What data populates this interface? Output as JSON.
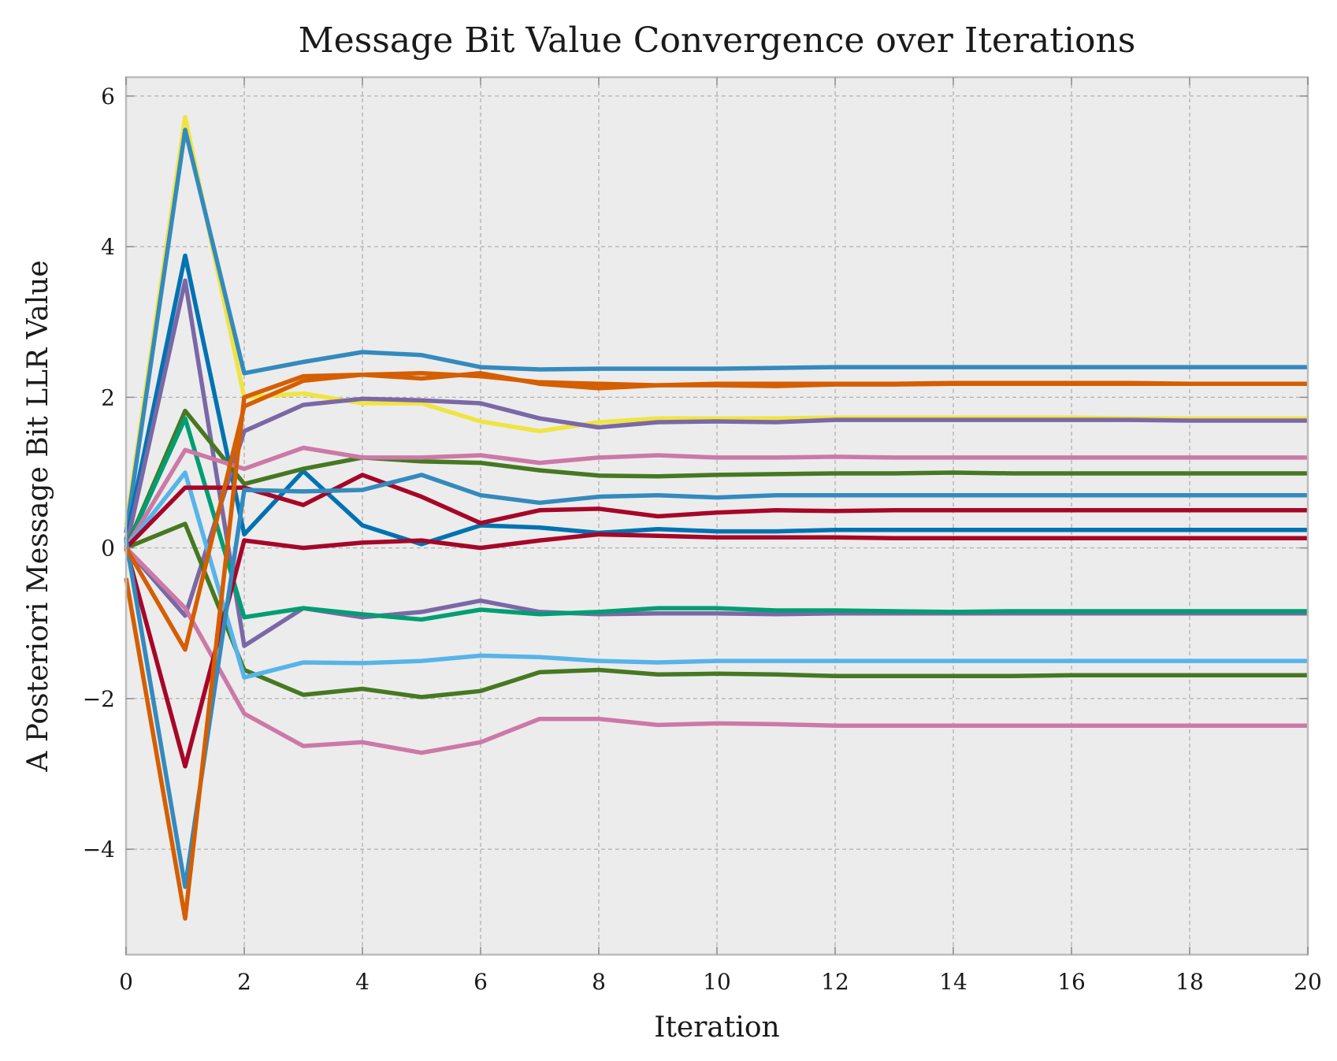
{
  "chart_data": {
    "type": "line",
    "title": "Message Bit Value Convergence over Iterations",
    "xlabel": "Iteration",
    "ylabel": "A Posteriori Message Bit LLR Value",
    "xlim": [
      0,
      20
    ],
    "ylim": [
      -5.4,
      6.25
    ],
    "xticks": [
      0,
      2,
      4,
      6,
      8,
      10,
      12,
      14,
      16,
      18,
      20
    ],
    "yticks": [
      -4,
      -2,
      0,
      2,
      4,
      6
    ],
    "ytick_labels": [
      "−4",
      "−2",
      "0",
      "2",
      "4",
      "6"
    ],
    "grid": true,
    "legend": "none",
    "background": "#ececec",
    "frame_color": "#bcbcbc",
    "x": [
      0,
      1,
      2,
      3,
      4,
      5,
      6,
      7,
      8,
      9,
      10,
      11,
      12,
      13,
      14,
      15,
      16,
      17,
      18,
      19,
      20
    ],
    "series": [
      {
        "color": "#f0e442",
        "values": [
          0.3,
          5.72,
          2.0,
          2.05,
          1.92,
          1.92,
          1.68,
          1.55,
          1.67,
          1.72,
          1.72,
          1.72,
          1.73,
          1.73,
          1.73,
          1.73,
          1.73,
          1.72,
          1.72,
          1.72,
          1.72
        ]
      },
      {
        "color": "#348abd",
        "values": [
          0.2,
          5.55,
          2.32,
          2.47,
          2.6,
          2.56,
          2.4,
          2.37,
          2.38,
          2.38,
          2.38,
          2.39,
          2.4,
          2.4,
          2.4,
          2.4,
          2.4,
          2.4,
          2.4,
          2.4,
          2.4
        ]
      },
      {
        "color": "#0072b2",
        "values": [
          0.1,
          3.88,
          0.18,
          1.02,
          0.3,
          0.05,
          0.3,
          0.27,
          0.2,
          0.25,
          0.22,
          0.22,
          0.24,
          0.24,
          0.24,
          0.24,
          0.24,
          0.24,
          0.24,
          0.24,
          0.24
        ]
      },
      {
        "color": "#7a68a6",
        "values": [
          0.0,
          3.55,
          -1.3,
          -0.8,
          -0.92,
          -0.85,
          -0.7,
          -0.85,
          -0.88,
          -0.87,
          -0.87,
          -0.88,
          -0.87,
          -0.87,
          -0.87,
          -0.87,
          -0.87,
          -0.87,
          -0.87,
          -0.87,
          -0.87
        ]
      },
      {
        "color": "#7a68a6",
        "values": [
          0.0,
          -0.9,
          1.55,
          1.9,
          1.98,
          1.96,
          1.92,
          1.72,
          1.6,
          1.67,
          1.68,
          1.67,
          1.7,
          1.7,
          1.7,
          1.7,
          1.7,
          1.7,
          1.69,
          1.69,
          1.69
        ]
      },
      {
        "color": "#467821",
        "values": [
          0.0,
          1.82,
          0.85,
          1.05,
          1.2,
          1.15,
          1.13,
          1.03,
          0.96,
          0.95,
          0.97,
          0.98,
          0.99,
          0.99,
          1.0,
          0.99,
          0.99,
          0.99,
          0.99,
          0.99,
          0.99
        ]
      },
      {
        "color": "#467821",
        "values": [
          0.0,
          0.32,
          -1.62,
          -1.95,
          -1.87,
          -1.98,
          -1.9,
          -1.65,
          -1.62,
          -1.68,
          -1.67,
          -1.68,
          -1.7,
          -1.7,
          -1.7,
          -1.7,
          -1.69,
          -1.69,
          -1.69,
          -1.69,
          -1.69
        ]
      },
      {
        "color": "#009e73",
        "values": [
          0.0,
          1.72,
          -0.92,
          -0.8,
          -0.88,
          -0.95,
          -0.82,
          -0.88,
          -0.85,
          -0.8,
          -0.8,
          -0.83,
          -0.83,
          -0.84,
          -0.85,
          -0.84,
          -0.84,
          -0.84,
          -0.84,
          -0.84,
          -0.84
        ]
      },
      {
        "color": "#cc79a7",
        "values": [
          0.0,
          1.3,
          1.05,
          1.33,
          1.2,
          1.2,
          1.23,
          1.13,
          1.2,
          1.23,
          1.2,
          1.2,
          1.21,
          1.2,
          1.2,
          1.2,
          1.2,
          1.2,
          1.2,
          1.2,
          1.2
        ]
      },
      {
        "color": "#cc79a7",
        "values": [
          0.0,
          -0.8,
          -2.2,
          -2.63,
          -2.58,
          -2.72,
          -2.58,
          -2.27,
          -2.27,
          -2.35,
          -2.33,
          -2.34,
          -2.36,
          -2.36,
          -2.36,
          -2.36,
          -2.36,
          -2.36,
          -2.36,
          -2.36,
          -2.36
        ]
      },
      {
        "color": "#56b4e9",
        "values": [
          0.0,
          1.0,
          -1.72,
          -1.52,
          -1.53,
          -1.5,
          -1.43,
          -1.45,
          -1.5,
          -1.52,
          -1.5,
          -1.5,
          -1.5,
          -1.5,
          -1.5,
          -1.5,
          -1.5,
          -1.5,
          -1.5,
          -1.5,
          -1.5
        ]
      },
      {
        "color": "#a60628",
        "values": [
          0.0,
          0.8,
          0.8,
          0.57,
          0.97,
          0.68,
          0.33,
          0.5,
          0.52,
          0.42,
          0.47,
          0.5,
          0.49,
          0.5,
          0.5,
          0.5,
          0.5,
          0.5,
          0.5,
          0.5,
          0.5
        ]
      },
      {
        "color": "#a60628",
        "values": [
          0.0,
          -2.9,
          0.1,
          0.0,
          0.07,
          0.1,
          0.0,
          0.1,
          0.18,
          0.16,
          0.14,
          0.14,
          0.14,
          0.13,
          0.13,
          0.13,
          0.13,
          0.13,
          0.13,
          0.13,
          0.13
        ]
      },
      {
        "color": "#348abd",
        "values": [
          0.1,
          -4.5,
          0.77,
          0.75,
          0.77,
          0.97,
          0.7,
          0.6,
          0.68,
          0.7,
          0.67,
          0.7,
          0.7,
          0.7,
          0.7,
          0.7,
          0.7,
          0.7,
          0.7,
          0.7,
          0.7
        ]
      },
      {
        "color": "#d55e00",
        "values": [
          -0.4,
          -4.92,
          2.0,
          2.28,
          2.3,
          2.25,
          2.32,
          2.18,
          2.12,
          2.16,
          2.16,
          2.15,
          2.17,
          2.17,
          2.18,
          2.18,
          2.18,
          2.18,
          2.18,
          2.18,
          2.18
        ]
      },
      {
        "color": "#d55e00",
        "values": [
          0.0,
          -1.35,
          1.88,
          2.22,
          2.3,
          2.32,
          2.28,
          2.2,
          2.18,
          2.16,
          2.18,
          2.18,
          2.18,
          2.18,
          2.19,
          2.19,
          2.19,
          2.19,
          2.18,
          2.18,
          2.18
        ]
      }
    ]
  }
}
